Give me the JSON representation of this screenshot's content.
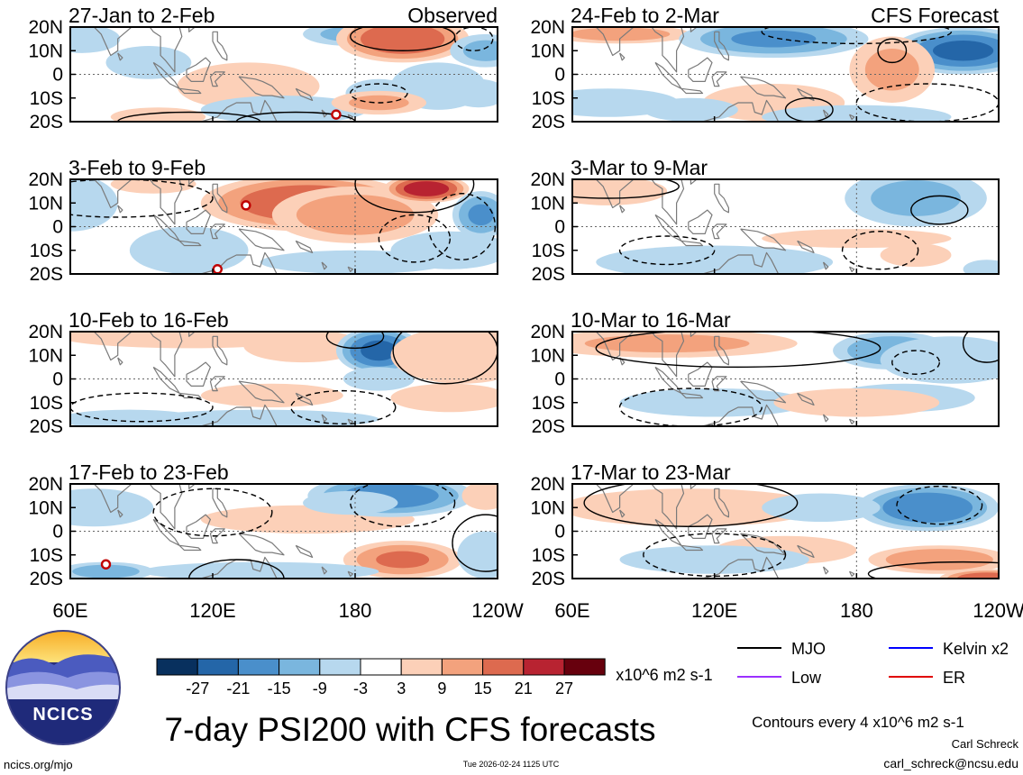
{
  "title": "7-day PSI200 with CFS forecasts",
  "chart_data": {
    "type": "heatmap",
    "variable": "7-day PSI200",
    "units": "x10^6 m2 s-1",
    "x_ticks": [
      "60E",
      "120E",
      "180",
      "120W"
    ],
    "y_ticks": [
      "20N",
      "10N",
      "0",
      "10S",
      "20S"
    ],
    "xlim": [
      60,
      240
    ],
    "ylim": [
      -20,
      20
    ],
    "panels": [
      {
        "period": "27-Jan to 2-Feb",
        "source": "Observed",
        "blobs": [
          [
            65,
            15,
            16,
            6,
            -8
          ],
          [
            93,
            5,
            18,
            7,
            -6
          ],
          [
            135,
            -5,
            30,
            10,
            5
          ],
          [
            150,
            -15,
            35,
            6,
            -5
          ],
          [
            178,
            17,
            20,
            5,
            -10
          ],
          [
            200,
            15,
            28,
            10,
            20
          ],
          [
            215,
            -5,
            20,
            10,
            -6
          ],
          [
            235,
            10,
            15,
            7,
            -10
          ],
          [
            232,
            -8,
            12,
            6,
            -6
          ],
          [
            190,
            -8,
            14,
            6,
            -5
          ],
          [
            190,
            -12,
            20,
            5,
            10
          ],
          [
            97,
            -18,
            20,
            4,
            4
          ]
        ],
        "contours": [
          [
            200,
            16,
            22,
            6,
            1
          ],
          [
            110,
            -20,
            30,
            4,
            1
          ],
          [
            155,
            -20,
            25,
            4,
            1
          ],
          [
            190,
            -8,
            12,
            4,
            -1
          ],
          [
            230,
            15,
            8,
            5,
            -1
          ]
        ]
      },
      {
        "period": "3-Feb to 9-Feb",
        "source": "",
        "blobs": [
          [
            60,
            10,
            20,
            12,
            -6
          ],
          [
            110,
            -10,
            25,
            10,
            -5
          ],
          [
            160,
            10,
            45,
            12,
            20
          ],
          [
            180,
            5,
            35,
            12,
            12
          ],
          [
            210,
            16,
            18,
            6,
            25
          ],
          [
            233,
            5,
            12,
            10,
            -15
          ],
          [
            220,
            -10,
            25,
            8,
            -6
          ],
          [
            180,
            -15,
            40,
            5,
            -6
          ],
          [
            95,
            18,
            18,
            4,
            5
          ]
        ],
        "contours": [
          [
            205,
            18,
            25,
            12,
            1
          ],
          [
            80,
            12,
            40,
            8,
            -1
          ],
          [
            225,
            0,
            14,
            14,
            -1
          ],
          [
            205,
            -5,
            15,
            10,
            -1
          ]
        ]
      },
      {
        "period": "10-Feb to 16-Feb",
        "source": "",
        "blobs": [
          [
            110,
            18,
            55,
            5,
            6
          ],
          [
            158,
            14,
            25,
            7,
            5
          ],
          [
            190,
            12,
            18,
            10,
            -22
          ],
          [
            190,
            0,
            15,
            5,
            -6
          ],
          [
            225,
            10,
            30,
            12,
            8
          ],
          [
            220,
            -8,
            25,
            6,
            6
          ],
          [
            145,
            -7,
            30,
            5,
            5
          ],
          [
            140,
            -17,
            50,
            4,
            -6
          ],
          [
            85,
            -17,
            30,
            4,
            -6
          ]
        ],
        "contours": [
          [
            218,
            12,
            22,
            14,
            1
          ],
          [
            175,
            -12,
            22,
            7,
            -1
          ],
          [
            90,
            -12,
            30,
            6,
            -1
          ],
          [
            180,
            18,
            12,
            5,
            1
          ]
        ]
      },
      {
        "period": "17-Feb to 23-Feb",
        "source": "",
        "blobs": [
          [
            70,
            10,
            25,
            8,
            -6
          ],
          [
            160,
            5,
            45,
            6,
            5
          ],
          [
            195,
            15,
            35,
            9,
            -18
          ],
          [
            178,
            12,
            20,
            5,
            -6
          ],
          [
            200,
            -12,
            25,
            8,
            15
          ],
          [
            235,
            -10,
            12,
            10,
            -6
          ],
          [
            140,
            -17,
            50,
            4,
            -6
          ],
          [
            75,
            -17,
            20,
            4,
            -12
          ],
          [
            235,
            15,
            10,
            6,
            6
          ]
        ],
        "contours": [
          [
            200,
            12,
            22,
            10,
            -1
          ],
          [
            130,
            -20,
            20,
            8,
            1
          ],
          [
            235,
            -5,
            14,
            12,
            1
          ],
          [
            120,
            8,
            25,
            10,
            -1
          ]
        ]
      },
      {
        "period": "24-Feb to 2-Mar",
        "source": "CFS Forecast",
        "blobs": [
          [
            80,
            17,
            30,
            4,
            12
          ],
          [
            145,
            15,
            40,
            8,
            -15
          ],
          [
            225,
            10,
            30,
            10,
            -22
          ],
          [
            195,
            2,
            18,
            14,
            10
          ],
          [
            145,
            -12,
            30,
            8,
            6
          ],
          [
            75,
            -12,
            30,
            6,
            -6
          ],
          [
            180,
            -18,
            40,
            5,
            -6
          ],
          [
            110,
            -15,
            20,
            5,
            -5
          ]
        ],
        "contours": [
          [
            180,
            18,
            40,
            5,
            -1
          ],
          [
            160,
            -15,
            10,
            5,
            1
          ],
          [
            210,
            -12,
            30,
            8,
            -1
          ],
          [
            195,
            10,
            6,
            5,
            1
          ]
        ]
      },
      {
        "period": "3-Mar to 9-Mar",
        "source": "",
        "blobs": [
          [
            75,
            15,
            25,
            6,
            6
          ],
          [
            205,
            12,
            30,
            12,
            -10
          ],
          [
            205,
            -12,
            15,
            5,
            8
          ],
          [
            120,
            -15,
            50,
            7,
            -6
          ],
          [
            180,
            -5,
            40,
            4,
            5
          ],
          [
            235,
            -18,
            10,
            4,
            -6
          ]
        ],
        "contours": [
          [
            75,
            17,
            30,
            5,
            1
          ],
          [
            215,
            7,
            12,
            6,
            1
          ],
          [
            190,
            -10,
            16,
            8,
            -1
          ],
          [
            100,
            -10,
            20,
            6,
            -1
          ]
        ]
      },
      {
        "period": "10-Mar to 16-Mar",
        "source": "",
        "blobs": [
          [
            100,
            15,
            55,
            6,
            10
          ],
          [
            195,
            12,
            25,
            8,
            -14
          ],
          [
            220,
            8,
            30,
            10,
            -8
          ],
          [
            200,
            -8,
            30,
            6,
            -5
          ],
          [
            120,
            -10,
            40,
            6,
            -5
          ],
          [
            180,
            -10,
            35,
            6,
            5
          ]
        ],
        "contours": [
          [
            130,
            13,
            60,
            8,
            1
          ],
          [
            205,
            7,
            10,
            5,
            -1
          ],
          [
            110,
            -12,
            30,
            8,
            -1
          ],
          [
            235,
            15,
            10,
            8,
            1
          ]
        ]
      },
      {
        "period": "17-Mar to 23-Mar",
        "source": "",
        "blobs": [
          [
            110,
            10,
            55,
            8,
            5
          ],
          [
            210,
            10,
            30,
            10,
            -20
          ],
          [
            150,
            -8,
            30,
            6,
            5
          ],
          [
            215,
            -12,
            30,
            6,
            14
          ],
          [
            235,
            -20,
            20,
            4,
            20
          ],
          [
            120,
            -12,
            40,
            6,
            -6
          ],
          [
            165,
            10,
            25,
            6,
            -5
          ]
        ],
        "contours": [
          [
            110,
            12,
            45,
            10,
            1
          ],
          [
            215,
            11,
            18,
            8,
            -1
          ],
          [
            120,
            -10,
            30,
            9,
            -1
          ],
          [
            225,
            -18,
            40,
            5,
            1
          ]
        ]
      }
    ],
    "colorbar": {
      "labels": [
        "-27",
        "-21",
        "-15",
        "-9",
        "-3",
        "3",
        "9",
        "15",
        "21",
        "27"
      ],
      "colors": [
        "#08305e",
        "#2466a8",
        "#4a8fcb",
        "#7ab6de",
        "#b7d8ee",
        "#ffffff",
        "#fcd0b8",
        "#f3a27d",
        "#dd6a4f",
        "#b82331",
        "#67000d"
      ],
      "units": "x10^6 m2 s-1"
    },
    "legend": [
      {
        "label": "MJO",
        "color": "#000000"
      },
      {
        "label": "Kelvin x2",
        "color": "#0000ff"
      },
      {
        "label": "Low",
        "color": "#9b30ff"
      },
      {
        "label": "ER",
        "color": "#e00000"
      }
    ],
    "contour_note": "Contours every 4 x10^6 m2 s-1",
    "storm_markers": [
      [
        0,
        172,
        -17
      ],
      [
        1,
        134,
        9
      ],
      [
        1,
        122,
        -18
      ],
      [
        3,
        75,
        -14
      ]
    ]
  },
  "footer": {
    "logo_text": "NCICS",
    "site": "ncics.org/mjo",
    "timestamp": "Tue 2026-02-24 1125 UTC",
    "author": "Carl Schreck",
    "email": "carl_schreck@ncsu.edu"
  }
}
